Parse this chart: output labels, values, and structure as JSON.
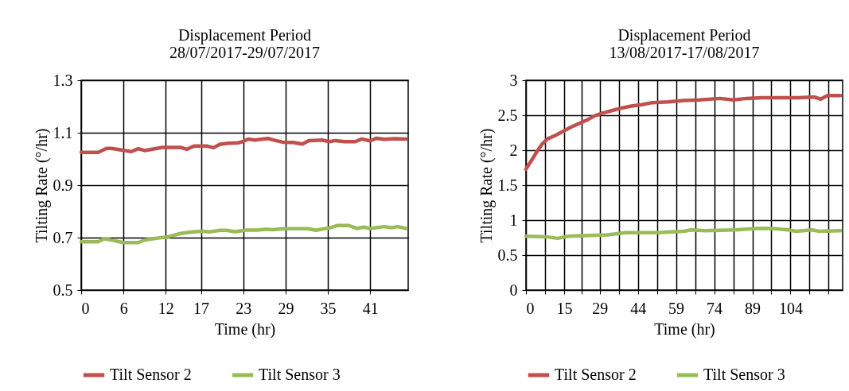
{
  "chart_data": [
    {
      "type": "line",
      "title": "Displacement Period",
      "subtitle": "28/07/2017-29/07/2017",
      "xlabel": "Time (hr)",
      "ylabel": "Tilting Rate (°/hr)",
      "xlim": [
        0,
        46.4
      ],
      "xticks": [
        0,
        6,
        12,
        17,
        23,
        29,
        35,
        41
      ],
      "ylim": [
        0.5,
        1.3
      ],
      "yticks": [
        0.5,
        0.7,
        0.9,
        1.1,
        1.3
      ],
      "grid": true,
      "legend": "bottom",
      "series": [
        {
          "name": "Tilt Sensor 2",
          "color": "#c0504d",
          "x": [
            0,
            2.4,
            3.6,
            4.3,
            7.1,
            8.1,
            9.0,
            11.5,
            14.1,
            15.0,
            16.0,
            17.9,
            18.8,
            19.7,
            20.9,
            22.2,
            22.9,
            23.7,
            24.6,
            26.5,
            27.6,
            28.6,
            30.1,
            31.4,
            32.3,
            34.2,
            35.2,
            36.1,
            37.4,
            38.9,
            39.8,
            41.0,
            41.9,
            43.0,
            44.5,
            46.1
          ],
          "values": [
            1.025,
            1.025,
            1.04,
            1.04,
            1.028,
            1.039,
            1.032,
            1.044,
            1.044,
            1.037,
            1.049,
            1.049,
            1.043,
            1.056,
            1.06,
            1.061,
            1.066,
            1.076,
            1.072,
            1.078,
            1.07,
            1.064,
            1.063,
            1.057,
            1.07,
            1.072,
            1.066,
            1.07,
            1.066,
            1.066,
            1.076,
            1.069,
            1.079,
            1.075,
            1.077,
            1.076
          ]
        },
        {
          "name": "Tilt Sensor 3",
          "color": "#9bbb59",
          "x": [
            0,
            2.4,
            3.3,
            4.6,
            6.0,
            8.1,
            9.0,
            11.5,
            12.0,
            14.1,
            15.6,
            17.1,
            18.2,
            19.7,
            20.6,
            21.8,
            23.5,
            25.0,
            26.1,
            27.2,
            28.8,
            32.2,
            33.3,
            35.2,
            36.3,
            38.0,
            39.1,
            40.1,
            41.0,
            43.0,
            44.0,
            44.9,
            46.1
          ],
          "values": [
            0.684,
            0.684,
            0.696,
            0.689,
            0.681,
            0.681,
            0.691,
            0.701,
            0.701,
            0.716,
            0.721,
            0.724,
            0.722,
            0.728,
            0.728,
            0.723,
            0.729,
            0.729,
            0.732,
            0.73,
            0.734,
            0.734,
            0.728,
            0.737,
            0.746,
            0.746,
            0.735,
            0.74,
            0.735,
            0.742,
            0.738,
            0.742,
            0.735
          ]
        }
      ]
    },
    {
      "type": "line",
      "title": "Displacement Period",
      "subtitle": "13/08/2017-17/08/2017",
      "xlabel": "Time (hr)",
      "ylabel": "Tilting Rate (°/hr)",
      "xlim": [
        0,
        124.5
      ],
      "xticks": [
        0,
        {
          "value": 7.5,
          "label": null
        },
        15,
        {
          "value": 22,
          "label": null
        },
        29,
        {
          "value": 36.5,
          "label": null
        },
        44,
        {
          "value": 51.5,
          "label": null
        },
        59,
        {
          "value": 66.5,
          "label": null
        },
        74,
        {
          "value": 81.5,
          "label": null
        },
        89,
        {
          "value": 96.5,
          "label": null
        },
        104,
        {
          "value": 111.5,
          "label": null
        },
        {
          "value": 119,
          "label": null
        }
      ],
      "ylim": [
        0,
        3
      ],
      "yticks": [
        0,
        0.5,
        1,
        1.5,
        2,
        2.5,
        3
      ],
      "grid": true,
      "legend": "bottom",
      "series": [
        {
          "name": "Tilt Sensor 2",
          "color": "#c0504d",
          "x": [
            0,
            2.3,
            4.3,
            6.4,
            8.4,
            11.5,
            14.6,
            17.7,
            20.8,
            23.9,
            26.9,
            30.0,
            33.1,
            37.2,
            41.4,
            45.5,
            49.6,
            55.8,
            61.9,
            68.1,
            76.3,
            81.5,
            86.6,
            92.8,
            101.0,
            107.2,
            113.4,
            115.9,
            118.5,
            123.6
          ],
          "values": [
            1.73,
            1.86,
            1.98,
            2.09,
            2.16,
            2.21,
            2.27,
            2.33,
            2.38,
            2.43,
            2.49,
            2.53,
            2.56,
            2.6,
            2.63,
            2.65,
            2.68,
            2.69,
            2.71,
            2.72,
            2.74,
            2.72,
            2.74,
            2.75,
            2.75,
            2.75,
            2.76,
            2.73,
            2.78,
            2.78
          ]
        },
        {
          "name": "Tilt Sensor 3",
          "color": "#9bbb59",
          "x": [
            0,
            8.4,
            12.5,
            16.7,
            24.9,
            32.1,
            39.3,
            51.7,
            62.0,
            65.0,
            70.2,
            82.5,
            90.7,
            96.9,
            103.1,
            106.2,
            112.3,
            115.4,
            123.6
          ],
          "values": [
            0.77,
            0.76,
            0.74,
            0.77,
            0.78,
            0.79,
            0.82,
            0.82,
            0.84,
            0.86,
            0.85,
            0.86,
            0.88,
            0.88,
            0.86,
            0.84,
            0.86,
            0.84,
            0.85
          ]
        }
      ]
    }
  ]
}
